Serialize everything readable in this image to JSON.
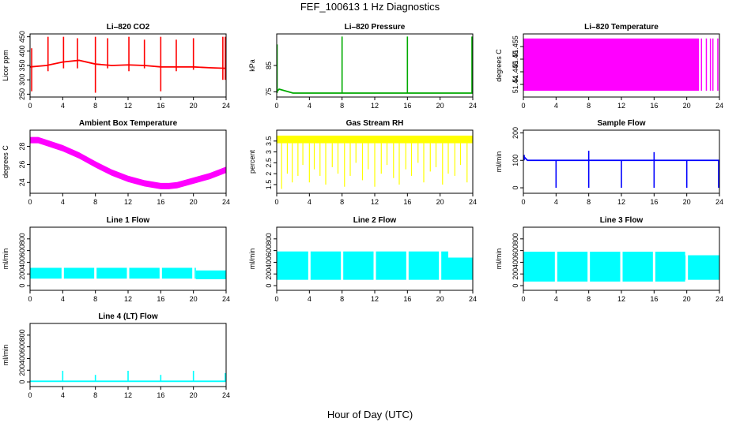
{
  "figure": {
    "title": "FEF_100613  1 Hz Diagnostics",
    "xlabel": "Hour of Day (UTC)"
  },
  "chart_data": [
    {
      "type": "line",
      "title": "Li–820 CO2",
      "ylabel": "Licor ppm",
      "color": "#ff0000",
      "xlim": [
        0,
        24
      ],
      "xticks": [
        0,
        4,
        8,
        12,
        16,
        20,
        24
      ],
      "ylim": [
        240,
        460
      ],
      "yticks": [
        250,
        300,
        350,
        400,
        450
      ],
      "series": [
        {
          "x": [
            0,
            2,
            4,
            6,
            8,
            10,
            12,
            14,
            16,
            18,
            20,
            22,
            24
          ],
          "y": [
            345,
            350,
            362,
            368,
            355,
            350,
            352,
            350,
            345,
            345,
            345,
            342,
            340
          ]
        }
      ],
      "spikes": {
        "x": [
          0.2,
          2.2,
          4.1,
          5.8,
          8.0,
          9.5,
          12.1,
          14.0,
          16.0,
          17.9,
          20.0,
          23.6,
          23.9
        ],
        "low": [
          260,
          330,
          340,
          340,
          255,
          340,
          330,
          340,
          260,
          330,
          335,
          300,
          300
        ],
        "high": [
          410,
          450,
          450,
          445,
          450,
          445,
          450,
          440,
          450,
          440,
          445,
          450,
          450
        ]
      }
    },
    {
      "type": "line",
      "title": "Li–820 Pressure",
      "ylabel": "kPa",
      "color": "#00aa00",
      "xlim": [
        0,
        24
      ],
      "xticks": [
        0,
        4,
        8,
        12,
        16,
        20,
        24
      ],
      "ylim": [
        73,
        97
      ],
      "yticks": [
        75,
        85
      ],
      "series": [
        {
          "x": [
            0,
            0.3,
            2,
            6,
            10,
            14,
            18,
            22,
            24
          ],
          "y": [
            75,
            76,
            74.5,
            74.5,
            74.5,
            74.5,
            74.5,
            74.5,
            74.5
          ]
        }
      ],
      "spikes": {
        "x": [
          0.05,
          8.0,
          16.0,
          23.9
        ],
        "low": [
          74.5,
          74.5,
          74.5,
          74.5
        ],
        "high": [
          93,
          96,
          96,
          96
        ]
      }
    },
    {
      "type": "area",
      "title": "Li–820 Temperature",
      "ylabel": "degrees C",
      "color": "#ff00ff",
      "xlim": [
        0,
        24
      ],
      "xticks": [
        0,
        4,
        8,
        12,
        16,
        20,
        24
      ],
      "ylim": [
        51.435,
        51.46
      ],
      "yticks": [
        51.44,
        51.445,
        51.45,
        51.455
      ],
      "band": {
        "x_start": 0,
        "x_end": 21.5,
        "y_low": 51.4375,
        "y_high": 51.4582
      },
      "lines": [
        21.8,
        22.4,
        22.9,
        23.2,
        23.8
      ]
    },
    {
      "type": "line",
      "title": "Ambient Box Temperature",
      "ylabel": "degrees C",
      "color": "#ff00ff",
      "xlim": [
        0,
        24
      ],
      "xticks": [
        0,
        4,
        8,
        12,
        16,
        20,
        24
      ],
      "ylim": [
        22.8,
        29.8
      ],
      "yticks": [
        24,
        26,
        28
      ],
      "series": [
        {
          "x": [
            0,
            1,
            2,
            4,
            6,
            8,
            10,
            12,
            14,
            16,
            17,
            18,
            20,
            22,
            24
          ],
          "y": [
            28.7,
            28.7,
            28.4,
            27.8,
            27.0,
            26.0,
            25.1,
            24.4,
            23.9,
            23.6,
            23.6,
            23.7,
            24.2,
            24.7,
            25.4
          ]
        }
      ],
      "band_half_width": 0.35
    },
    {
      "type": "line",
      "title": "Gas Stream RH",
      "ylabel": "percent",
      "color": "#ffff00",
      "xlim": [
        0,
        24
      ],
      "xticks": [
        0,
        4,
        8,
        12,
        16,
        20,
        24
      ],
      "ylim": [
        1.1,
        4.0
      ],
      "yticks": [
        1.5,
        2.0,
        2.5,
        3.0,
        3.5
      ],
      "band": {
        "y_low": 3.4,
        "y_high": 3.75
      },
      "dips": {
        "x": [
          0.6,
          1.3,
          1.9,
          2.6,
          3.2,
          4.0,
          4.6,
          5.3,
          6.0,
          6.8,
          7.5,
          8.3,
          9.0,
          9.7,
          10.5,
          11.2,
          12.0,
          12.8,
          13.5,
          14.3,
          15.0,
          15.8,
          16.5,
          17.3,
          18.0,
          18.8,
          19.5,
          20.3,
          21.0,
          21.8,
          22.5,
          23.3
        ],
        "low": [
          1.3,
          2.0,
          1.6,
          1.9,
          2.4,
          1.6,
          2.2,
          1.9,
          1.5,
          2.3,
          2.0,
          1.4,
          1.9,
          2.5,
          1.7,
          2.2,
          1.4,
          2.0,
          2.4,
          1.8,
          1.5,
          2.2,
          1.9,
          2.5,
          1.6,
          2.1,
          2.3,
          1.5,
          2.0,
          1.9,
          2.4,
          1.6
        ]
      }
    },
    {
      "type": "line",
      "title": "Sample Flow",
      "ylabel": "ml/min",
      "color": "#0000ff",
      "xlim": [
        0,
        24
      ],
      "xticks": [
        0,
        4,
        8,
        12,
        16,
        20,
        24
      ],
      "ylim": [
        -20,
        210
      ],
      "yticks": [
        0,
        100,
        200
      ],
      "series": [
        {
          "x": [
            0,
            0.5,
            4,
            8,
            12,
            16,
            20,
            24
          ],
          "y": [
            115,
            100,
            100,
            100,
            100,
            100,
            100,
            100
          ]
        }
      ],
      "spikes": {
        "x": [
          0.1,
          4.0,
          8.0,
          12.0,
          16.0,
          20.0,
          23.9
        ],
        "low": [
          100,
          0,
          0,
          0,
          0,
          0,
          0
        ],
        "high": [
          120,
          100,
          135,
          100,
          130,
          100,
          100
        ]
      }
    },
    {
      "type": "area",
      "title": "Line 1 Flow",
      "ylabel": "ml/min",
      "color": "#00ffff",
      "xlim": [
        0,
        24
      ],
      "xticks": [
        0,
        4,
        8,
        12,
        16,
        20,
        24
      ],
      "ylim": [
        -80,
        1000
      ],
      "yticks": [
        0,
        200,
        400,
        600,
        800
      ],
      "bands": [
        {
          "x0": 0,
          "x1": 20.3,
          "low": 120,
          "high": 305
        },
        {
          "x0": 20.3,
          "x1": 24,
          "low": 110,
          "high": 260
        }
      ],
      "gaps": [
        4.0,
        8.0,
        12.0,
        16.0,
        20.0
      ]
    },
    {
      "type": "area",
      "title": "Line 2 Flow",
      "ylabel": "ml/min",
      "color": "#00ffff",
      "xlim": [
        0,
        24
      ],
      "xticks": [
        0,
        4,
        8,
        12,
        16,
        20,
        24
      ],
      "ylim": [
        -80,
        1000
      ],
      "yticks": [
        0,
        200,
        400,
        600,
        800
      ],
      "bands": [
        {
          "x0": 0,
          "x1": 21.0,
          "low": 100,
          "high": 585
        },
        {
          "x0": 21.0,
          "x1": 24,
          "low": 100,
          "high": 480
        }
      ],
      "gaps": [
        4.0,
        8.0,
        12.0,
        16.0,
        20.0
      ]
    },
    {
      "type": "area",
      "title": "Line 3 Flow",
      "ylabel": "ml/min",
      "color": "#00ffff",
      "xlim": [
        0,
        24
      ],
      "xticks": [
        0,
        4,
        8,
        12,
        16,
        20,
        24
      ],
      "ylim": [
        -80,
        1000
      ],
      "yticks": [
        0,
        200,
        400,
        600,
        800
      ],
      "bands": [
        {
          "x0": 0,
          "x1": 19.8,
          "low": 70,
          "high": 580
        },
        {
          "x0": 19.8,
          "x1": 24,
          "low": 100,
          "high": 520
        }
      ],
      "gaps": [
        4.0,
        8.0,
        12.0,
        16.0,
        20.0
      ]
    },
    {
      "type": "line",
      "title": "Line 4 (LT) Flow",
      "ylabel": "ml/min",
      "color": "#00ffff",
      "xlim": [
        0,
        24
      ],
      "xticks": [
        0,
        4,
        8,
        12,
        16,
        20,
        24
      ],
      "ylim": [
        -80,
        1000
      ],
      "yticks": [
        0,
        200,
        400,
        600,
        800
      ],
      "series": [
        {
          "x": [
            0,
            24
          ],
          "y": [
            10,
            10
          ]
        }
      ],
      "spikes": {
        "x": [
          4.0,
          8.0,
          12.0,
          16.0,
          20.0,
          23.9
        ],
        "low": [
          10,
          10,
          10,
          10,
          10,
          10
        ],
        "high": [
          190,
          120,
          190,
          120,
          190,
          150
        ]
      }
    }
  ]
}
